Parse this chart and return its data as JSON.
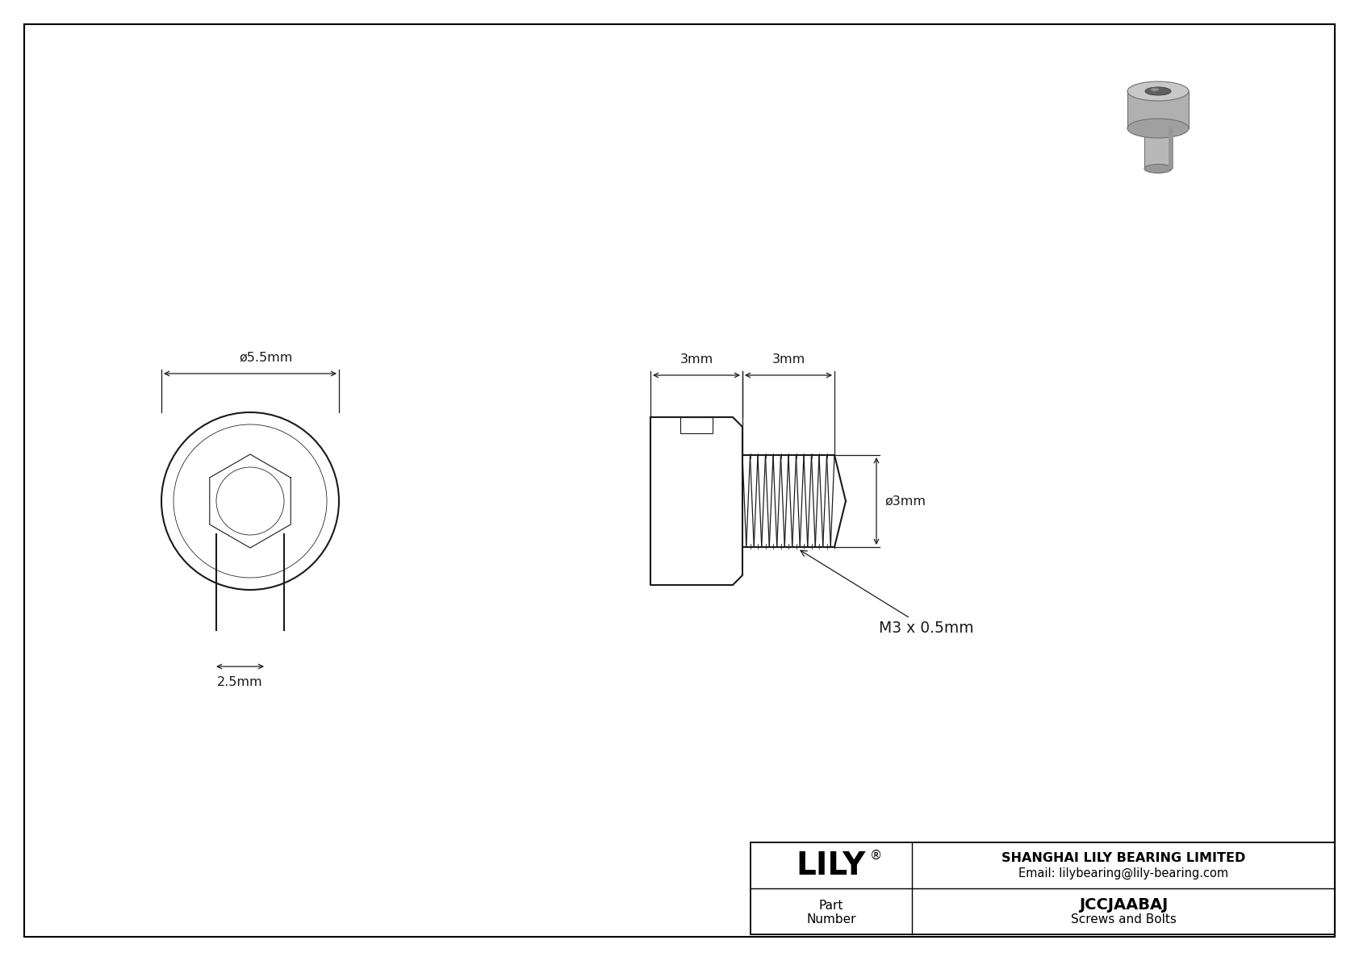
{
  "bg_color": "#ffffff",
  "line_color": "#1a1a1a",
  "dim_color": "#1a1a1a",
  "border_color": "#000000",
  "table_line_color": "#000000",
  "title_company": "SHANGHAI LILY BEARING LIMITED",
  "title_email": "Email: lilybearing@lily-bearing.com",
  "part_number": "JCCJAABAJ",
  "part_category": "Screws and Bolts",
  "brand": "LILY",
  "brand_reg": "®",
  "dim_head_diam": "ø5.5mm",
  "dim_socket_depth": "2.5mm",
  "dim_head_len": "3mm",
  "dim_thread_len": "3mm",
  "dim_thread_diam": "ø3mm",
  "thread_label": "M3 x 0.5mm",
  "fig_width": 16.84,
  "fig_height": 11.91,
  "dpi": 100
}
